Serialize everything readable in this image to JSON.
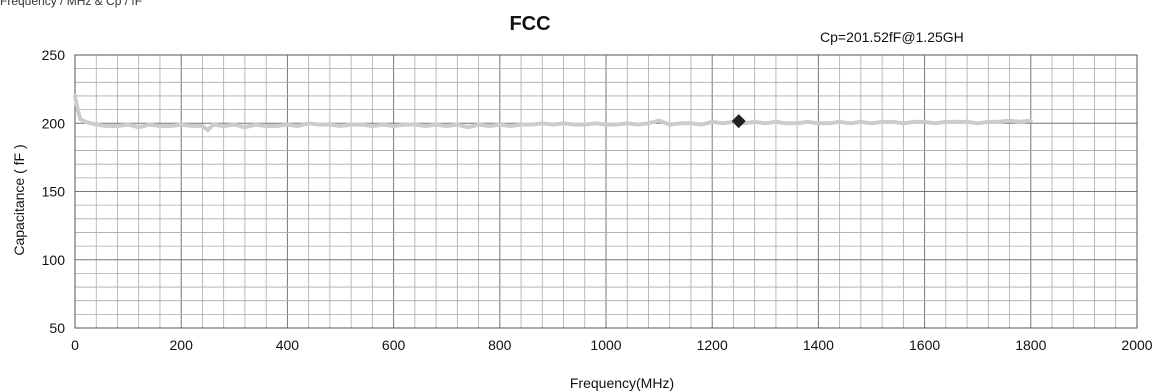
{
  "caption": "Frequency / MHz & Cp / fF",
  "chart_data": {
    "type": "line",
    "title": "FCC",
    "annotation": "Cp=201.52fF@1.25GH",
    "xlabel": "Frequency(MHz)",
    "ylabel": "Capacitance ( fF )",
    "xlim": [
      0,
      2000
    ],
    "ylim": [
      50,
      250
    ],
    "xticks": [
      0,
      200,
      400,
      600,
      800,
      1000,
      1200,
      1400,
      1600,
      1800,
      2000
    ],
    "yticks": [
      50,
      100,
      150,
      200,
      250
    ],
    "grid": true,
    "series": [
      {
        "color": "#cccccc",
        "x": [
          0,
          5,
          10,
          20,
          40,
          60,
          80,
          100,
          120,
          140,
          160,
          180,
          200,
          220,
          240,
          250,
          260,
          280,
          300,
          320,
          340,
          360,
          380,
          400,
          420,
          440,
          460,
          480,
          500,
          520,
          540,
          560,
          580,
          600,
          620,
          640,
          660,
          680,
          700,
          720,
          740,
          760,
          780,
          800,
          820,
          840,
          860,
          880,
          900,
          920,
          940,
          960,
          980,
          1000,
          1020,
          1040,
          1060,
          1080,
          1100,
          1120,
          1140,
          1160,
          1180,
          1200,
          1220,
          1240,
          1260,
          1280,
          1300,
          1320,
          1340,
          1360,
          1380,
          1400,
          1420,
          1440,
          1460,
          1480,
          1500,
          1520,
          1540,
          1560,
          1580,
          1600,
          1620,
          1640,
          1660,
          1680,
          1700,
          1720,
          1740,
          1760,
          1780,
          1800
        ],
        "values": [
          220,
          210,
          203,
          201,
          199,
          198,
          198,
          199,
          197,
          199,
          198,
          198,
          199,
          198,
          198,
          195,
          199,
          198,
          199,
          197,
          199,
          198,
          198,
          199,
          198,
          200,
          199,
          199,
          198,
          199,
          199,
          198,
          199,
          198,
          199,
          199,
          198,
          199,
          198,
          199,
          197,
          199,
          198,
          199,
          198,
          199,
          199,
          200,
          199,
          200,
          199,
          199,
          200,
          199,
          199,
          200,
          199,
          200,
          202,
          199,
          200,
          200,
          199,
          201,
          200,
          201,
          200,
          201,
          200,
          201,
          200,
          200,
          201,
          200,
          200,
          201,
          200,
          201,
          200,
          201,
          201,
          200,
          201,
          201,
          200,
          201,
          201,
          201,
          200,
          201,
          201,
          202,
          201,
          202
        ]
      }
    ],
    "marker": {
      "x": 1250,
      "y": 201.52,
      "shape": "diamond",
      "color": "#222222"
    }
  }
}
